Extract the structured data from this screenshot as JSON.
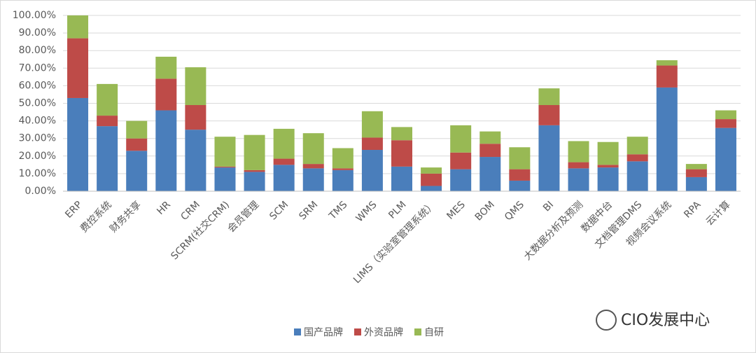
{
  "chart_data": {
    "type": "stacked_bar",
    "categories": [
      "ERP",
      "费控系统",
      "财务共享",
      "HR",
      "CRM",
      "SCRM(社交CRM)",
      "会员管理",
      "SCM",
      "SRM",
      "TMS",
      "WMS",
      "PLM",
      "LIMS（实验室管理系统）",
      "MES",
      "BOM",
      "QMS",
      "BI",
      "大数据分析及预测",
      "数据中台",
      "文档管理DMS",
      "视频会议系统",
      "RPA",
      "云计算"
    ],
    "series": [
      {
        "name": "国产品牌",
        "color": "#4a7ebb",
        "values": [
          53,
          37,
          23,
          46,
          35,
          13.5,
          11,
          15,
          13,
          12,
          23.5,
          14,
          3,
          12.5,
          19.5,
          6,
          37.5,
          13,
          13.5,
          17,
          59,
          8,
          36
        ]
      },
      {
        "name": "外资品牌",
        "color": "#be4b48",
        "values": [
          34,
          6,
          7,
          18,
          14,
          0.5,
          1,
          3.5,
          2.5,
          1,
          7,
          15,
          7,
          9.5,
          7.5,
          6.5,
          11.5,
          3.5,
          1.5,
          4,
          12.5,
          4.5,
          5
        ]
      },
      {
        "name": "自研",
        "color": "#98b954",
        "values": [
          13,
          18,
          10,
          12.5,
          21.5,
          17,
          20,
          17,
          17.5,
          11.5,
          15,
          7.5,
          3.5,
          15.5,
          7,
          12.5,
          9.5,
          12,
          13,
          10,
          3,
          3,
          5
        ]
      }
    ],
    "ylim": [
      0,
      100
    ],
    "yticks": [
      {
        "value": 0,
        "label": "0.00%"
      },
      {
        "value": 10,
        "label": "10.00%"
      },
      {
        "value": 20,
        "label": "20.00%"
      },
      {
        "value": 30,
        "label": "30.00%"
      },
      {
        "value": 40,
        "label": "40.00%"
      },
      {
        "value": 50,
        "label": "50.00%"
      },
      {
        "value": 60,
        "label": "60.00%"
      },
      {
        "value": 70,
        "label": "70.00%"
      },
      {
        "value": 80,
        "label": "80.00%"
      },
      {
        "value": 90,
        "label": "90.00%"
      },
      {
        "value": 100,
        "label": "100.00%"
      }
    ],
    "grid": true,
    "legend": "bottom"
  },
  "brand": "CIO发展中心"
}
